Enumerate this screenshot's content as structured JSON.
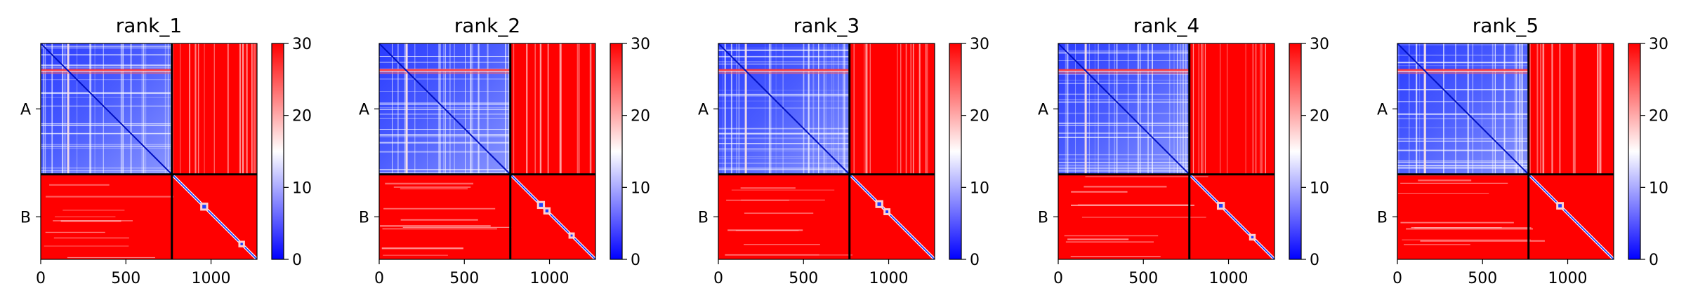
{
  "chart_data": [
    {
      "type": "heatmap",
      "title": "rank_1",
      "x_tick_labels": [
        "0",
        "500",
        "1000"
      ],
      "x_ticks": [
        0,
        500,
        1000
      ],
      "y_tick_labels": [
        "A",
        "B"
      ],
      "chain_boundary": 770,
      "total_length": 1270,
      "colorbar": {
        "range": [
          0,
          30
        ],
        "tick_values": [
          0,
          10,
          20,
          30
        ],
        "tick_labels": [
          "0",
          "10",
          "20",
          "30"
        ],
        "colors": [
          "#0000ff",
          "#ffffff",
          "#ff0000"
        ]
      },
      "diag_spots": [
        [
          960,
          22
        ],
        [
          1180,
          14
        ]
      ]
    },
    {
      "type": "heatmap",
      "title": "rank_2",
      "x_tick_labels": [
        "0",
        "500",
        "1000"
      ],
      "x_ticks": [
        0,
        500,
        1000
      ],
      "y_tick_labels": [
        "A",
        "B"
      ],
      "chain_boundary": 770,
      "total_length": 1270,
      "colorbar": {
        "range": [
          0,
          30
        ],
        "tick_values": [
          0,
          10,
          20,
          30
        ],
        "tick_labels": [
          "0",
          "10",
          "20",
          "30"
        ],
        "colors": [
          "#0000ff",
          "#ffffff",
          "#ff0000"
        ]
      },
      "diag_spots": [
        [
          950,
          22
        ],
        [
          985,
          18
        ],
        [
          1130,
          12
        ]
      ]
    },
    {
      "type": "heatmap",
      "title": "rank_3",
      "x_tick_labels": [
        "0",
        "500",
        "1000"
      ],
      "x_ticks": [
        0,
        500,
        1000
      ],
      "y_tick_labels": [
        "A",
        "B"
      ],
      "chain_boundary": 770,
      "total_length": 1270,
      "colorbar": {
        "range": [
          0,
          30
        ],
        "tick_values": [
          0,
          10,
          20,
          30
        ],
        "tick_labels": [
          "0",
          "10",
          "20",
          "30"
        ],
        "colors": [
          "#0000ff",
          "#ffffff",
          "#ff0000"
        ]
      },
      "diag_spots": [
        [
          945,
          22
        ],
        [
          990,
          16
        ]
      ]
    },
    {
      "type": "heatmap",
      "title": "rank_4",
      "x_tick_labels": [
        "0",
        "500",
        "1000"
      ],
      "x_ticks": [
        0,
        500,
        1000
      ],
      "y_tick_labels": [
        "A",
        "B"
      ],
      "chain_boundary": 770,
      "total_length": 1270,
      "colorbar": {
        "range": [
          0,
          30
        ],
        "tick_values": [
          0,
          10,
          20,
          30
        ],
        "tick_labels": [
          "0",
          "10",
          "20",
          "30"
        ],
        "colors": [
          "#0000ff",
          "#ffffff",
          "#ff0000"
        ]
      },
      "diag_spots": [
        [
          955,
          22
        ],
        [
          1140,
          14
        ]
      ]
    },
    {
      "type": "heatmap",
      "title": "rank_5",
      "x_tick_labels": [
        "0",
        "500",
        "1000"
      ],
      "x_ticks": [
        0,
        500,
        1000
      ],
      "y_tick_labels": [
        "A",
        "B"
      ],
      "chain_boundary": 770,
      "total_length": 1270,
      "colorbar": {
        "range": [
          0,
          30
        ],
        "tick_values": [
          0,
          10,
          20,
          30
        ],
        "tick_labels": [
          "0",
          "10",
          "20",
          "30"
        ],
        "colors": [
          "#0000ff",
          "#ffffff",
          "#ff0000"
        ]
      },
      "diag_spots": [
        [
          955,
          20
        ]
      ]
    }
  ]
}
